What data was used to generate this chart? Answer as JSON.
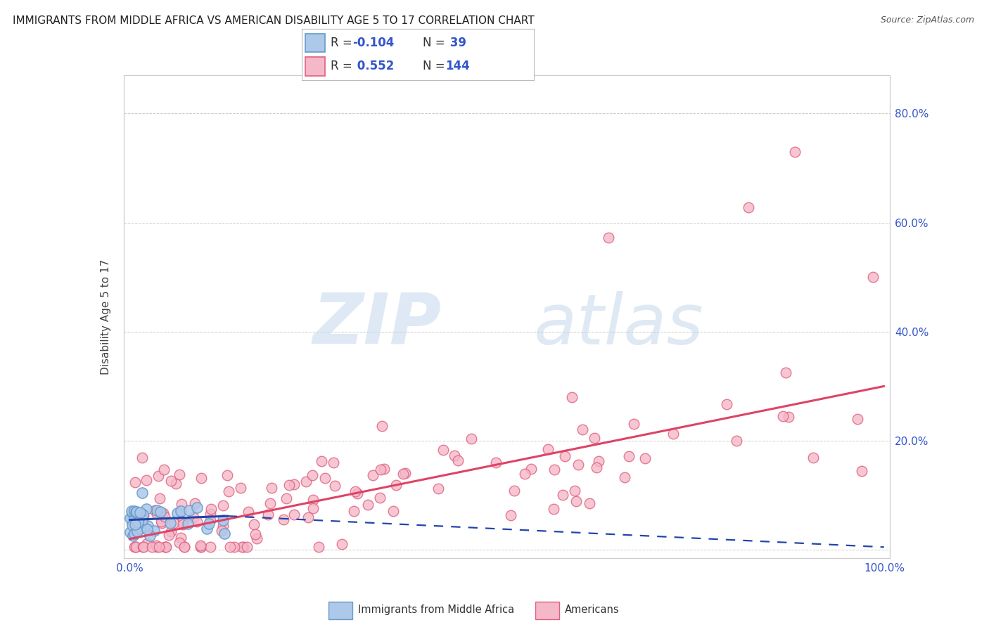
{
  "title": "IMMIGRANTS FROM MIDDLE AFRICA VS AMERICAN DISABILITY AGE 5 TO 17 CORRELATION CHART",
  "source": "Source: ZipAtlas.com",
  "ylabel": "Disability Age 5 to 17",
  "blue_R": "-0.104",
  "blue_N": "39",
  "pink_R": "0.552",
  "pink_N": "144",
  "blue_color": "#adc8e8",
  "blue_edge": "#6699cc",
  "pink_color": "#f4b8c8",
  "pink_edge": "#e06080",
  "blue_line_color": "#2244aa",
  "pink_line_color": "#dd4466",
  "watermark_zip": "ZIP",
  "watermark_atlas": "atlas",
  "legend_label_blue": "Immigrants from Middle Africa",
  "legend_label_pink": "Americans",
  "xlim": [
    0.0,
    1.0
  ],
  "ylim": [
    0.0,
    0.85
  ],
  "pink_line_x0": 0.0,
  "pink_line_y0": 0.02,
  "pink_line_x1": 1.0,
  "pink_line_y1": 0.3,
  "blue_line_solid_x0": 0.0,
  "blue_line_solid_y0": 0.055,
  "blue_line_solid_x1": 0.13,
  "blue_line_solid_y1": 0.062,
  "blue_line_dash_x0": 0.13,
  "blue_line_dash_y0": 0.062,
  "blue_line_dash_x1": 1.0,
  "blue_line_dash_y1": 0.005
}
